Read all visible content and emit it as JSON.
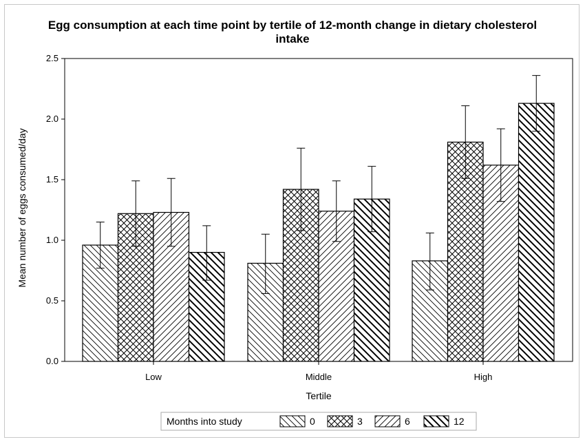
{
  "chart_data": {
    "type": "bar",
    "title_line1": "Egg consumption at each time point by tertile of 12-month change in dietary cholesterol",
    "title_line2": "intake",
    "xlabel": "Tertile",
    "ylabel": "Mean number of eggs consumed/day",
    "ylim": [
      0,
      2.5
    ],
    "yticks": [
      "0.0",
      "0.5",
      "1.0",
      "1.5",
      "2.0",
      "2.5"
    ],
    "categories": [
      "Low",
      "Middle",
      "High"
    ],
    "legend_title": "Months into study",
    "legend_position": "bottom-center",
    "series": [
      {
        "name": "0",
        "pattern": "diag-back",
        "values": [
          0.96,
          0.81,
          0.83
        ],
        "err_low": [
          0.77,
          0.56,
          0.59
        ],
        "err_high": [
          1.15,
          1.05,
          1.06
        ]
      },
      {
        "name": "3",
        "pattern": "cross",
        "values": [
          1.22,
          1.42,
          1.81
        ],
        "err_low": [
          0.95,
          1.08,
          1.51
        ],
        "err_high": [
          1.49,
          1.76,
          2.11
        ]
      },
      {
        "name": "6",
        "pattern": "diag-fwd",
        "values": [
          1.23,
          1.24,
          1.62
        ],
        "err_low": [
          0.95,
          0.99,
          1.32
        ],
        "err_high": [
          1.51,
          1.49,
          1.92
        ]
      },
      {
        "name": "12",
        "pattern": "diag-back-bold",
        "values": [
          0.9,
          1.34,
          2.13
        ],
        "err_low": [
          0.67,
          1.07,
          1.9
        ],
        "err_high": [
          1.12,
          1.61,
          2.36
        ]
      }
    ],
    "colors": {
      "fill": "#ffffff",
      "stroke": "#000000",
      "frame": "#c8c8c8"
    }
  }
}
